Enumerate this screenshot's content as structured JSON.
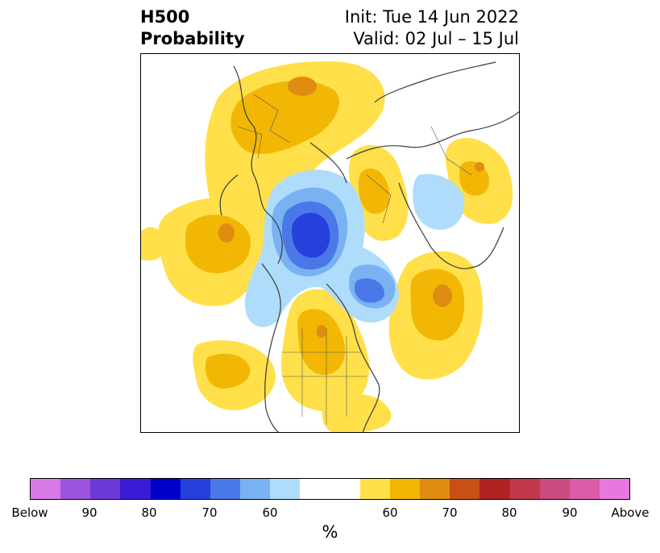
{
  "header": {
    "title_line1": "H500",
    "title_line2": "Probability",
    "init": "Init: Tue 14 Jun 2022",
    "valid": "Valid: 02 Jul – 15 Jul"
  },
  "map": {
    "projection": "north-polar-stereographic",
    "fields": [
      {
        "category": "above-60",
        "color": "#ffe04a"
      },
      {
        "category": "above-65",
        "color": "#f2b705"
      },
      {
        "category": "above-70",
        "color": "#e08c10"
      },
      {
        "category": "below-60",
        "color": "#aedcfa"
      },
      {
        "category": "below-65",
        "color": "#78b2f2"
      },
      {
        "category": "below-70",
        "color": "#4a78e8"
      },
      {
        "category": "below-75",
        "color": "#2640dc"
      }
    ]
  },
  "colorbar": {
    "colors": [
      "#d77ae8",
      "#9c55e0",
      "#6d38d8",
      "#3a1cd6",
      "#0000cc",
      "#2640dc",
      "#4a78e8",
      "#78b2f2",
      "#aedcfa",
      "#ffffff",
      "#ffffff",
      "#ffe04a",
      "#f2b705",
      "#e08c10",
      "#c85016",
      "#b22222",
      "#c0384a",
      "#cc4c80",
      "#dd5ca8",
      "#e878e0"
    ],
    "labels": [
      "Below",
      "90",
      "80",
      "70",
      "60",
      "60",
      "70",
      "80",
      "90",
      "Above"
    ],
    "unit": "%"
  }
}
